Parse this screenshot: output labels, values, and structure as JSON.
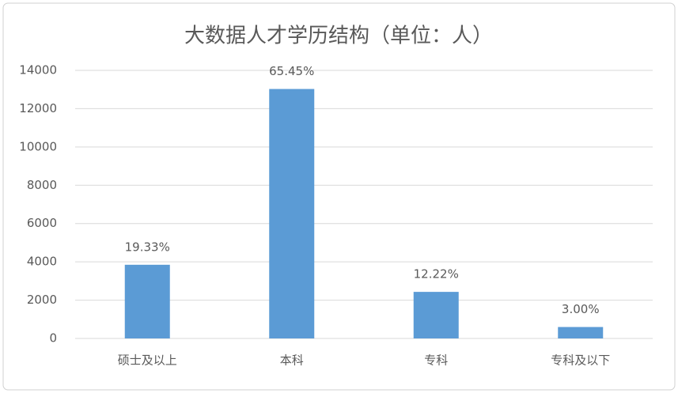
{
  "chart_data": {
    "type": "bar",
    "title": "大数据人才学历结构（单位：人）",
    "categories": [
      "硕士及以上",
      "本科",
      "专科",
      "专科及以下"
    ],
    "values": [
      3848,
      13028,
      2432,
      597
    ],
    "value_labels": [
      "19.33%",
      "65.45%",
      "12.22%",
      "3.00%"
    ],
    "color": "#5b9bd5",
    "ylim": [
      0,
      14000
    ],
    "yticks": [
      0,
      2000,
      4000,
      6000,
      8000,
      10000,
      12000,
      14000
    ],
    "grid": true
  }
}
